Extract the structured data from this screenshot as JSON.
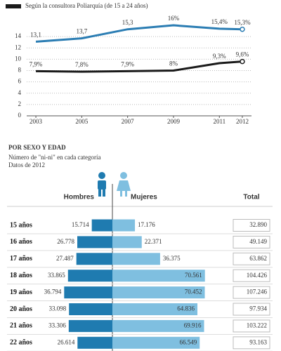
{
  "chart_data": [
    {
      "type": "line",
      "legend": "top-left",
      "x": [
        2003,
        2005,
        2007,
        2009,
        2011,
        2012
      ],
      "xlim": [
        2002.6,
        2012.4
      ],
      "xticks": [
        2003,
        2005,
        2007,
        2009,
        2011,
        2012
      ],
      "ylim": [
        0,
        17
      ],
      "yticks": [
        0,
        2,
        4,
        6,
        8,
        10,
        12,
        14
      ],
      "grid": true,
      "series": [
        {
          "color": "#2b7db3",
          "values": [
            13.1,
            13.7,
            15.3,
            16,
            15.4,
            15.3
          ],
          "value_labels": [
            "13,1",
            "13,7",
            "15,3",
            "16%",
            "15,4%",
            "15,3%"
          ]
        },
        {
          "name": "Según la consultora Poliarquía (de 15 a 24 años)",
          "color": "#1a1a1a",
          "values": [
            7.9,
            7.8,
            7.9,
            8,
            9.3,
            9.6
          ],
          "value_labels": [
            "7,9%",
            "7,8%",
            "7,9%",
            "8%",
            "9,3%",
            "9,6%"
          ]
        }
      ]
    },
    {
      "type": "pyramid",
      "title": "POR SEXO Y EDAD",
      "subtitle": "Número de \"ni-ni\" en cada categoría",
      "note": "Datos de 2012",
      "categories": [
        "15 años",
        "16 años",
        "17 años",
        "18 años",
        "19 años",
        "20 años",
        "21 años",
        "22 años"
      ],
      "xlim": [
        0,
        75000
      ],
      "series": [
        {
          "name": "Hombres",
          "color": "#1f7bb0",
          "values": [
            15714,
            26778,
            27487,
            33865,
            36794,
            33098,
            33306,
            26614
          ],
          "value_labels": [
            "15.714",
            "26.778",
            "27.487",
            "33.865",
            "36.794",
            "33.098",
            "33.306",
            "26.614"
          ]
        },
        {
          "name": "Mujeres",
          "color": "#7fbfe0",
          "values": [
            17176,
            22371,
            36375,
            70561,
            70452,
            64836,
            69916,
            66549
          ],
          "value_labels": [
            "17.176",
            "22.371",
            "36.375",
            "70.561",
            "70.452",
            "64.836",
            "69.916",
            "66.549"
          ]
        }
      ],
      "total": {
        "name": "Total",
        "values": [
          32890,
          49149,
          63862,
          104426,
          107246,
          97934,
          103222,
          93163
        ],
        "value_labels": [
          "32.890",
          "49.149",
          "63.862",
          "104.426",
          "107.246",
          "97.934",
          "103.222",
          "93.163"
        ]
      }
    }
  ]
}
